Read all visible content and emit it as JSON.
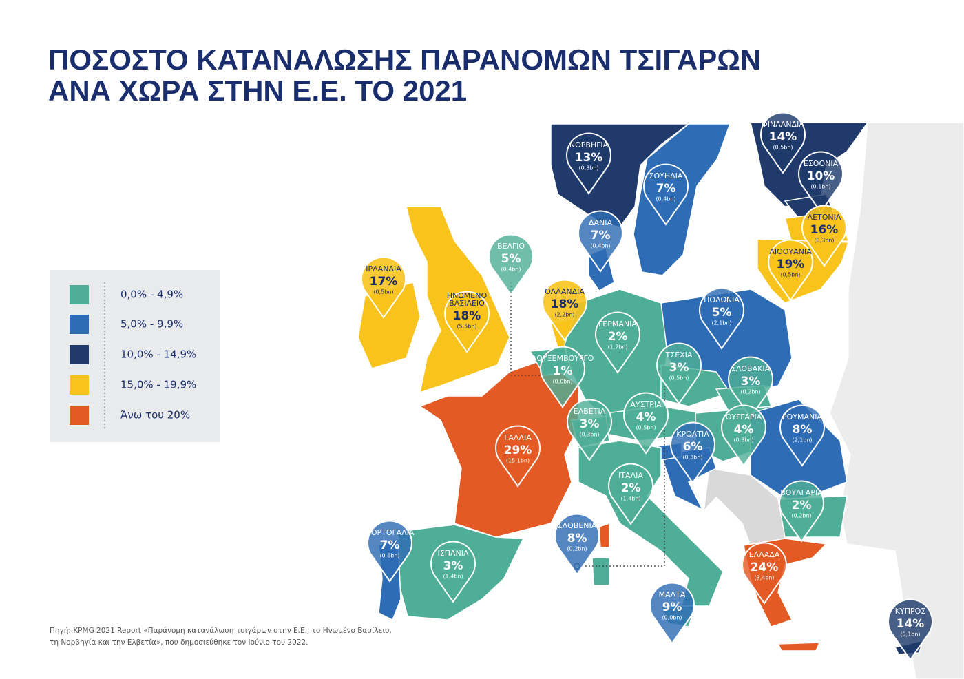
{
  "title_lines": [
    "ΠΟΣΟΣΤΟ ΚΑΤΑΝΑΛΩΣΗΣ ΠΑΡΑΝΟΜΩΝ ΤΣΙΓΑΡΩΝ",
    "ΑΝΑ ΧΩΡΑ ΣΤΗΝ Ε.Ε. ΤΟ 2021"
  ],
  "legend": [
    {
      "label": "0,0% - 4,9%",
      "color": "#4fae97"
    },
    {
      "label": "5,0% - 9,9%",
      "color": "#2e6db5"
    },
    {
      "label": "10,0% - 14,9%",
      "color": "#1f3a6b"
    },
    {
      "label": "15,0% - 19,9%",
      "color": "#f7c31c"
    },
    {
      "label": "Άνω του 20%",
      "color": "#e35a24"
    }
  ],
  "countries": [
    {
      "name": [
        "ΦΙΝΛΑΝΔΙΑ"
      ],
      "percent": "14%",
      "volume": "(0,5bn)",
      "color": "#1f3a6b"
    },
    {
      "name": [
        "ΝΟΡΒΗΓΙΑ"
      ],
      "percent": "13%",
      "volume": "(0,3bn)",
      "color": "#1f3a6b"
    },
    {
      "name": [
        "ΕΣΘΟΝΙΑ"
      ],
      "percent": "10%",
      "volume": "(0,1bn)",
      "color": "#1f3a6b"
    },
    {
      "name": [
        "ΣΟΥΗΔΙΑ"
      ],
      "percent": "7%",
      "volume": "(0,4bn)",
      "color": "#2e6db5"
    },
    {
      "name": [
        "ΛΕΤΟΝΙΑ"
      ],
      "percent": "16%",
      "volume": "(0,3bn)",
      "color": "#f7c31c"
    },
    {
      "name": [
        "ΔΑΝΙΑ"
      ],
      "percent": "7%",
      "volume": "(0,4bn)",
      "color": "#2e6db5"
    },
    {
      "name": [
        "ΛΙΘΟΥΑΝΙΑ"
      ],
      "percent": "19%",
      "volume": "(0,5bn)",
      "color": "#f7c31c"
    },
    {
      "name": [
        "ΒΕΛΓΙΟ"
      ],
      "percent": "5%",
      "volume": "(0,4bn)",
      "color": "#4fae97"
    },
    {
      "name": [
        "ΙΡΛΑΝΔΙΑ"
      ],
      "percent": "17%",
      "volume": "(0,5bn)",
      "color": "#f7c31c"
    },
    {
      "name": [
        "ΟΛΛΑΝΔΙΑ"
      ],
      "percent": "18%",
      "volume": "(2,2bn)",
      "color": "#f7c31c"
    },
    {
      "name": [
        "ΗΝΩΜΕΝΟ",
        "ΒΑΣΙΛΕΙΟ"
      ],
      "percent": "18%",
      "volume": "(5,5bn)",
      "color": "#f7c31c"
    },
    {
      "name": [
        "ΠΟΛΩΝΙΑ"
      ],
      "percent": "5%",
      "volume": "(2,1bn)",
      "color": "#2e6db5"
    },
    {
      "name": [
        "ΓΕΡΜΑΝΙΑ"
      ],
      "percent": "2%",
      "volume": "(1,7bn)",
      "color": "#4fae97"
    },
    {
      "name": [
        "ΤΣΕΧΙΑ"
      ],
      "percent": "3%",
      "volume": "(0,5bn)",
      "color": "#4fae97"
    },
    {
      "name": [
        "ΛΟΥΞΕΜΒΟΥΡΓΟ"
      ],
      "percent": "1%",
      "volume": "(0,0bn)",
      "color": "#4fae97"
    },
    {
      "name": [
        "ΣΛΟΒΑΚΙΑ"
      ],
      "percent": "3%",
      "volume": "(0,2bn)",
      "color": "#4fae97"
    },
    {
      "name": [
        "ΑΥΣΤΡΙΑ"
      ],
      "percent": "4%",
      "volume": "(0,5bn)",
      "color": "#4fae97"
    },
    {
      "name": [
        "ΕΛΒΕΤΙΑ"
      ],
      "percent": "3%",
      "volume": "(0,3bn)",
      "color": "#4fae97"
    },
    {
      "name": [
        "ΟΥΓΓΑΡΙΑ"
      ],
      "percent": "4%",
      "volume": "(0,3bn)",
      "color": "#4fae97"
    },
    {
      "name": [
        "ΡΟΥΜΑΝΙΑ"
      ],
      "percent": "8%",
      "volume": "(2,1bn)",
      "color": "#2e6db5"
    },
    {
      "name": [
        "ΚΡΟΑΤΙΑ"
      ],
      "percent": "6%",
      "volume": "(0,3bn)",
      "color": "#2e6db5"
    },
    {
      "name": [
        "ΓΑΛΛΙΑ"
      ],
      "percent": "29%",
      "volume": "(15,1bn)",
      "color": "#e35a24"
    },
    {
      "name": [
        "ΙΤΑΛΙΑ"
      ],
      "percent": "2%",
      "volume": "(1,4bn)",
      "color": "#4fae97"
    },
    {
      "name": [
        "ΒΟΥΛΓΑΡΙΑ"
      ],
      "percent": "2%",
      "volume": "(0,2bn)",
      "color": "#4fae97"
    },
    {
      "name": [
        "ΣΛΟΒΕΝΙΑ"
      ],
      "percent": "8%",
      "volume": "(0,2bn)",
      "color": "#2e6db5"
    },
    {
      "name": [
        "ΠΟΡΤΟΓΑΛΙΑ"
      ],
      "percent": "7%",
      "volume": "(0,6bn)",
      "color": "#2e6db5"
    },
    {
      "name": [
        "ΙΣΠΑΝΙΑ"
      ],
      "percent": "3%",
      "volume": "(1,4bn)",
      "color": "#4fae97"
    },
    {
      "name": [
        "ΕΛΛΑΔΑ"
      ],
      "percent": "24%",
      "volume": "(3,4bn)",
      "color": "#e35a24"
    },
    {
      "name": [
        "ΜΑΛΤΑ"
      ],
      "percent": "9%",
      "volume": "(0,0bn)",
      "color": "#2e6db5"
    },
    {
      "name": [
        "ΚΥΠΡΟΣ"
      ],
      "percent": "14%",
      "volume": "(0,1bn)",
      "color": "#1f3a6b"
    }
  ],
  "source_lines": [
    "Πηγή: KPMG 2021 Report «Παράνομη κατανάλωση τσιγάρων στην Ε.Ε., το Ηνωμένο Βασίλειο,",
    "τη Νορβηγία και την Ελβετία», που δημοσιεύθηκε τον Ιούνιο του 2022."
  ]
}
